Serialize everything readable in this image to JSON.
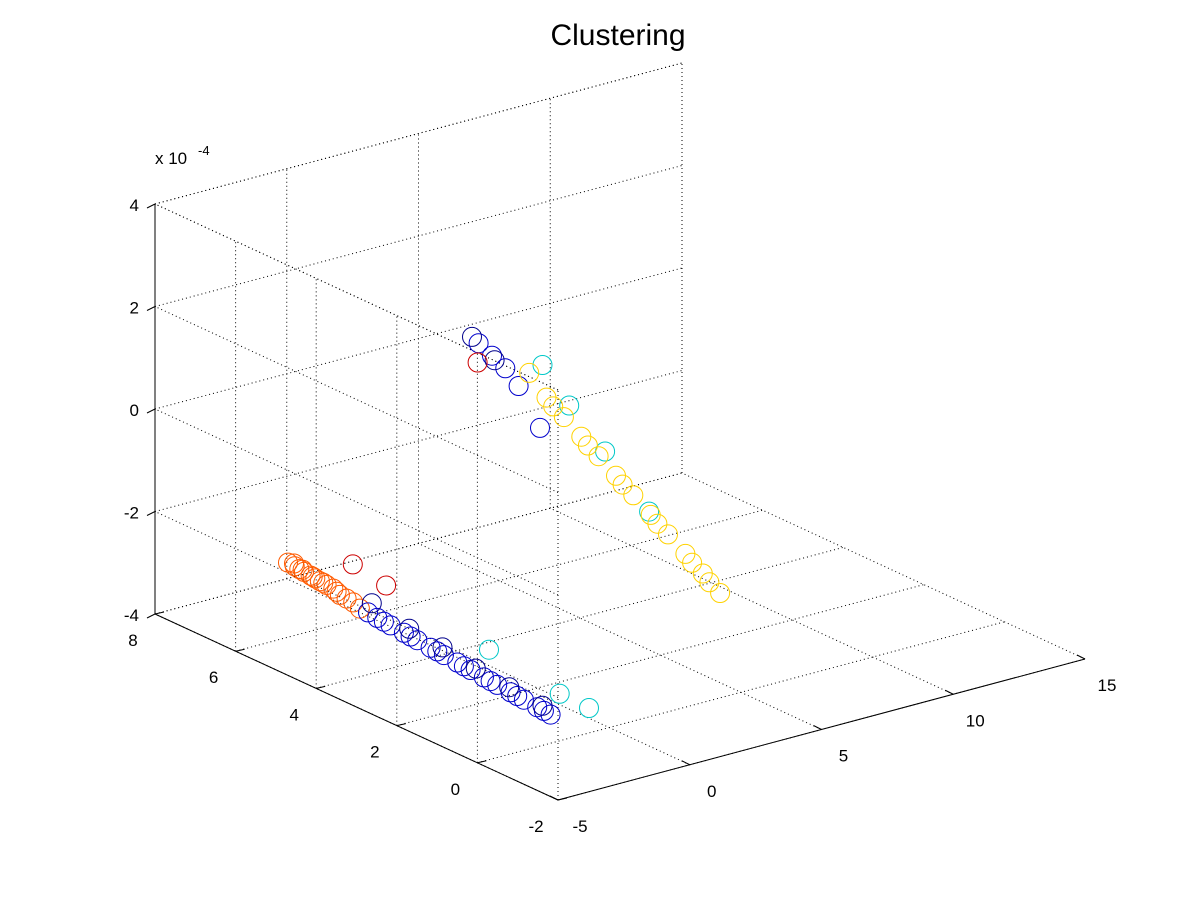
{
  "chart_data": {
    "type": "scatter3d",
    "title": "Clustering",
    "xlabel": "",
    "ylabel": "",
    "zlabel": "",
    "z_exponent_label": "x 10",
    "z_exponent_power": "-4",
    "xlim": [
      -5,
      15
    ],
    "ylim": [
      -2,
      8
    ],
    "zlim": [
      -4,
      4
    ],
    "xticks": [
      -5,
      0,
      5,
      10,
      15
    ],
    "yticks": [
      -2,
      0,
      2,
      4,
      6,
      8
    ],
    "zticks": [
      -4,
      -2,
      0,
      2,
      4
    ],
    "xtick_labels": [
      "-5",
      "0",
      "5",
      "10",
      "15"
    ],
    "ytick_labels": [
      "-2",
      "0",
      "2",
      "4",
      "6",
      "8"
    ],
    "ztick_labels": [
      "-4",
      "-2",
      "0",
      "2",
      "4"
    ],
    "grid": true,
    "marker": "open-circle",
    "series": [
      {
        "color": "#ff5a00",
        "points": [
          [
            -5.0,
            4.7,
            -1.8
          ],
          [
            -4.9,
            4.6,
            -1.85
          ],
          [
            -4.8,
            4.55,
            -1.9
          ],
          [
            -4.7,
            4.5,
            -1.95
          ],
          [
            -4.6,
            4.4,
            -2.0
          ],
          [
            -4.5,
            4.35,
            -2.05
          ],
          [
            -4.4,
            4.3,
            -2.1
          ],
          [
            -4.3,
            4.2,
            -2.15
          ],
          [
            -4.2,
            4.1,
            -2.2
          ],
          [
            -4.1,
            4.0,
            -2.3
          ],
          [
            -4.0,
            3.9,
            -2.35
          ],
          [
            -4.85,
            4.65,
            -1.82
          ],
          [
            -4.75,
            4.5,
            -1.9
          ],
          [
            -4.55,
            4.38,
            -2.02
          ],
          [
            -4.35,
            4.25,
            -2.12
          ],
          [
            -4.15,
            4.05,
            -2.25
          ],
          [
            -3.9,
            3.8,
            -2.4
          ],
          [
            -3.8,
            3.7,
            -2.5
          ]
        ]
      },
      {
        "color": "#0000cc",
        "points": [
          [
            -3.8,
            3.5,
            -2.5
          ],
          [
            -3.6,
            3.4,
            -2.6
          ],
          [
            -3.4,
            3.2,
            -2.7
          ],
          [
            -3.2,
            3.0,
            -2.8
          ],
          [
            -3.0,
            2.8,
            -2.9
          ],
          [
            -2.8,
            2.6,
            -3.0
          ],
          [
            -2.6,
            2.4,
            -3.1
          ],
          [
            -2.4,
            2.2,
            -3.2
          ],
          [
            -2.2,
            2.0,
            -3.3
          ],
          [
            -2.0,
            1.8,
            -3.4
          ],
          [
            -1.8,
            1.6,
            -3.5
          ],
          [
            -1.6,
            1.4,
            -3.6
          ],
          [
            -1.4,
            1.2,
            -3.7
          ],
          [
            -1.2,
            1.0,
            -3.8
          ],
          [
            -1.0,
            0.8,
            -3.9
          ],
          [
            -3.5,
            3.3,
            -2.65
          ],
          [
            -3.1,
            2.9,
            -2.85
          ],
          [
            -2.7,
            2.5,
            -3.05
          ],
          [
            -2.3,
            2.1,
            -3.25
          ],
          [
            -1.9,
            1.7,
            -3.45
          ],
          [
            -1.5,
            1.3,
            -3.65
          ],
          [
            -1.1,
            0.9,
            -3.85
          ],
          [
            3.0,
            5.2,
            1.2
          ],
          [
            3.2,
            5.0,
            1.0
          ],
          [
            3.4,
            4.8,
            0.8
          ],
          [
            3.6,
            4.6,
            0.5
          ],
          [
            3.8,
            4.2,
            -0.2
          ]
        ]
      },
      {
        "color": "#00008b",
        "points": [
          [
            -3.5,
            3.6,
            -2.4
          ],
          [
            -3.0,
            3.0,
            -2.75
          ],
          [
            -2.5,
            2.5,
            -3.0
          ],
          [
            -2.0,
            2.0,
            -3.3
          ],
          [
            -1.5,
            1.5,
            -3.55
          ],
          [
            -1.0,
            1.0,
            -3.8
          ],
          [
            2.9,
            5.3,
            1.3
          ],
          [
            3.3,
            5.0,
            0.9
          ]
        ]
      },
      {
        "color": "#cc0000",
        "points": [
          [
            -3.0,
            4.4,
            -2.0
          ],
          [
            -2.5,
            3.9,
            -2.3
          ],
          [
            2.5,
            4.9,
            1.0
          ]
        ]
      },
      {
        "color": "#00c8c8",
        "points": [
          [
            -1.5,
            2.0,
            -3.0
          ],
          [
            -0.5,
            0.9,
            -3.6
          ],
          [
            0.0,
            0.5,
            -3.8
          ],
          [
            4.6,
            4.0,
            0.2
          ],
          [
            5.2,
            3.5,
            -0.6
          ],
          [
            5.8,
            2.8,
            -1.6
          ],
          [
            4.2,
            4.4,
            0.9
          ]
        ]
      },
      {
        "color": "#ffd200",
        "points": [
          [
            4.0,
            4.6,
            0.7
          ],
          [
            4.2,
            4.3,
            0.3
          ],
          [
            4.4,
            4.0,
            0.0
          ],
          [
            4.6,
            3.7,
            -0.3
          ],
          [
            4.8,
            3.4,
            -0.6
          ],
          [
            5.0,
            3.1,
            -0.9
          ],
          [
            5.2,
            2.8,
            -1.2
          ],
          [
            5.4,
            2.5,
            -1.5
          ],
          [
            5.6,
            2.2,
            -1.8
          ],
          [
            5.8,
            1.9,
            -2.1
          ],
          [
            6.0,
            1.6,
            -2.4
          ],
          [
            6.2,
            1.3,
            -2.7
          ],
          [
            4.3,
            4.2,
            0.15
          ],
          [
            4.7,
            3.6,
            -0.45
          ],
          [
            5.1,
            3.0,
            -1.05
          ],
          [
            5.5,
            2.4,
            -1.65
          ],
          [
            5.9,
            1.8,
            -2.25
          ],
          [
            6.1,
            1.5,
            -2.55
          ]
        ]
      }
    ]
  }
}
